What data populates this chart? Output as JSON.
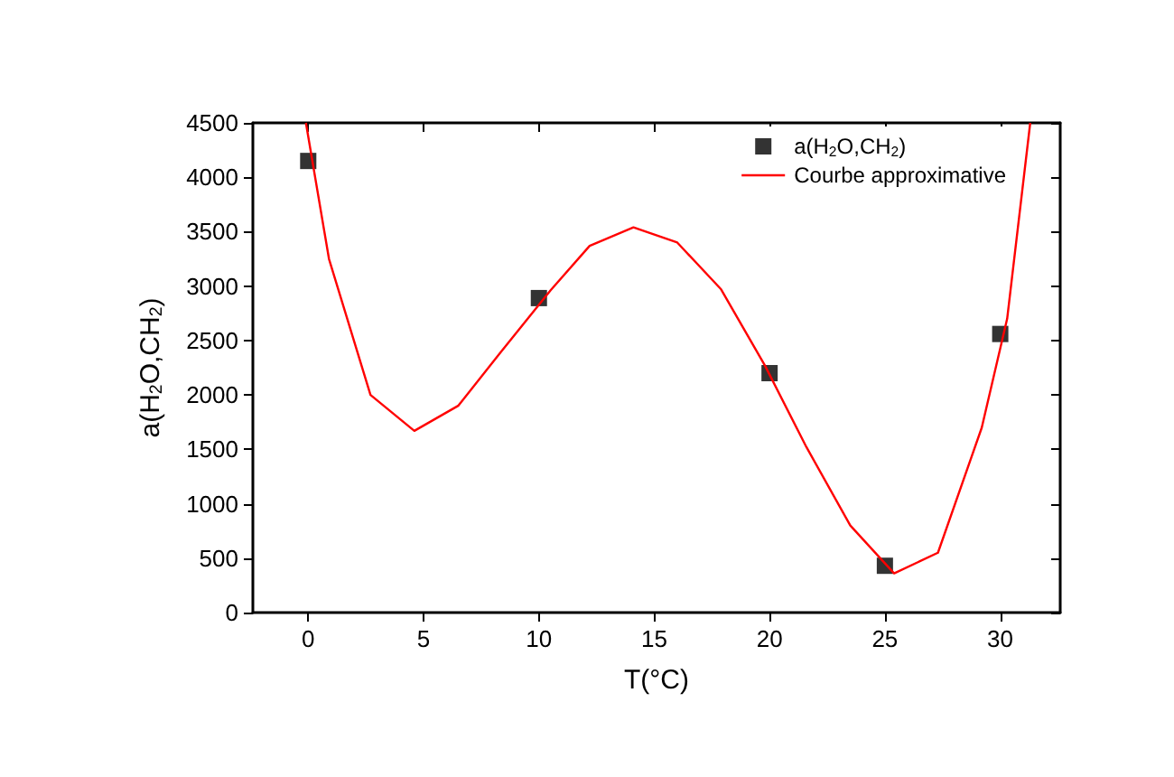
{
  "chart_data": {
    "type": "scatter",
    "xlabel": "T(°C)",
    "ylabel": "a(H$_{2}$O,CH$_{2}$)",
    "xlim": [
      -2.4,
      32.6
    ],
    "xticks": [
      0,
      5,
      10,
      15,
      20,
      25,
      30
    ],
    "ylim": [
      0,
      4500
    ],
    "yticks": [
      0,
      500,
      1000,
      1500,
      2000,
      2500,
      3000,
      3500,
      4000,
      4500
    ],
    "legend": "top right",
    "grid": false,
    "series": [
      {
        "name": "a(H$_{2}$O,CH$_{2}$)",
        "marker": "square",
        "color": "#000000",
        "x": [
          0,
          10,
          20,
          25,
          30
        ],
        "values": [
          4150,
          2890,
          2200,
          430,
          2560
        ]
      },
      {
        "name": "Courbe approximative",
        "type": "line",
        "marker": "none",
        "color": "#ff0000",
        "x": [
          -0.1,
          0.9,
          2.7,
          4.6,
          6.5,
          8.3,
          10.5,
          12.2,
          14.1,
          16,
          17.9,
          19.8,
          21.6,
          23.5,
          25.4,
          27.3,
          29.2,
          30.3,
          31.3
        ],
        "values": [
          4500,
          3250,
          2000,
          1670,
          1900,
          2380,
          2960,
          3370,
          3540,
          3400,
          2970,
          2270,
          1520,
          800,
          360,
          550,
          1700,
          2700,
          4500
        ]
      }
    ]
  }
}
